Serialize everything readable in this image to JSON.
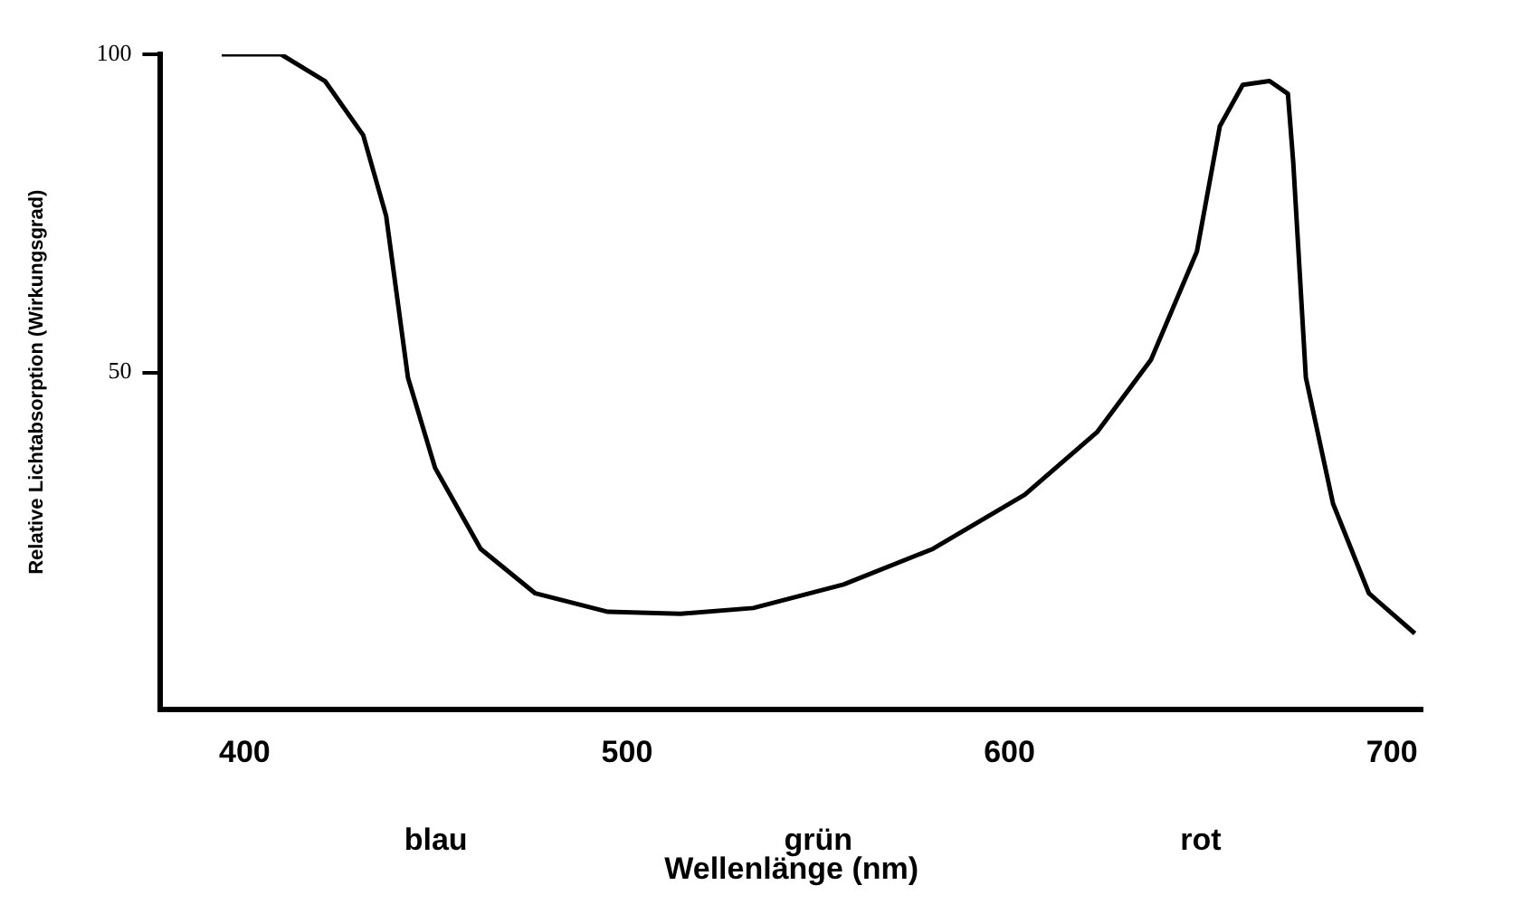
{
  "chart_data": {
    "type": "line",
    "xlabel": "Wellenlänge (nm)",
    "ylabel": "Relative Lichtabsorption (Wirkungsgrad)",
    "x": [
      394,
      409.5,
      421,
      431,
      437,
      442.7,
      449.8,
      461.7,
      476,
      495,
      514,
      533,
      556.6,
      580,
      604,
      623,
      637,
      649,
      655,
      661,
      668,
      672.8,
      674.2,
      677.5,
      684.6,
      694,
      706
    ],
    "series": [
      {
        "color": "#000000",
        "values": [
          100,
          100,
          95.8,
          87.3,
          74.6,
          49.2,
          35,
          22.3,
          15.3,
          12.4,
          12.1,
          13,
          16.7,
          22.3,
          30.8,
          40.7,
          52,
          69,
          88.7,
          95.2,
          95.8,
          93.8,
          83,
          49.2,
          29.4,
          15.3,
          9
        ]
      }
    ],
    "xlim": [
      378,
      708
    ],
    "xticks": [
      400,
      500,
      600,
      700
    ],
    "ylim": [
      -3,
      100
    ],
    "yticks": [
      50,
      100
    ],
    "annotations": [
      "blau",
      "grün",
      "rot"
    ],
    "grid": false,
    "legend": false,
    "marker": "none",
    "line_style": "solid"
  }
}
